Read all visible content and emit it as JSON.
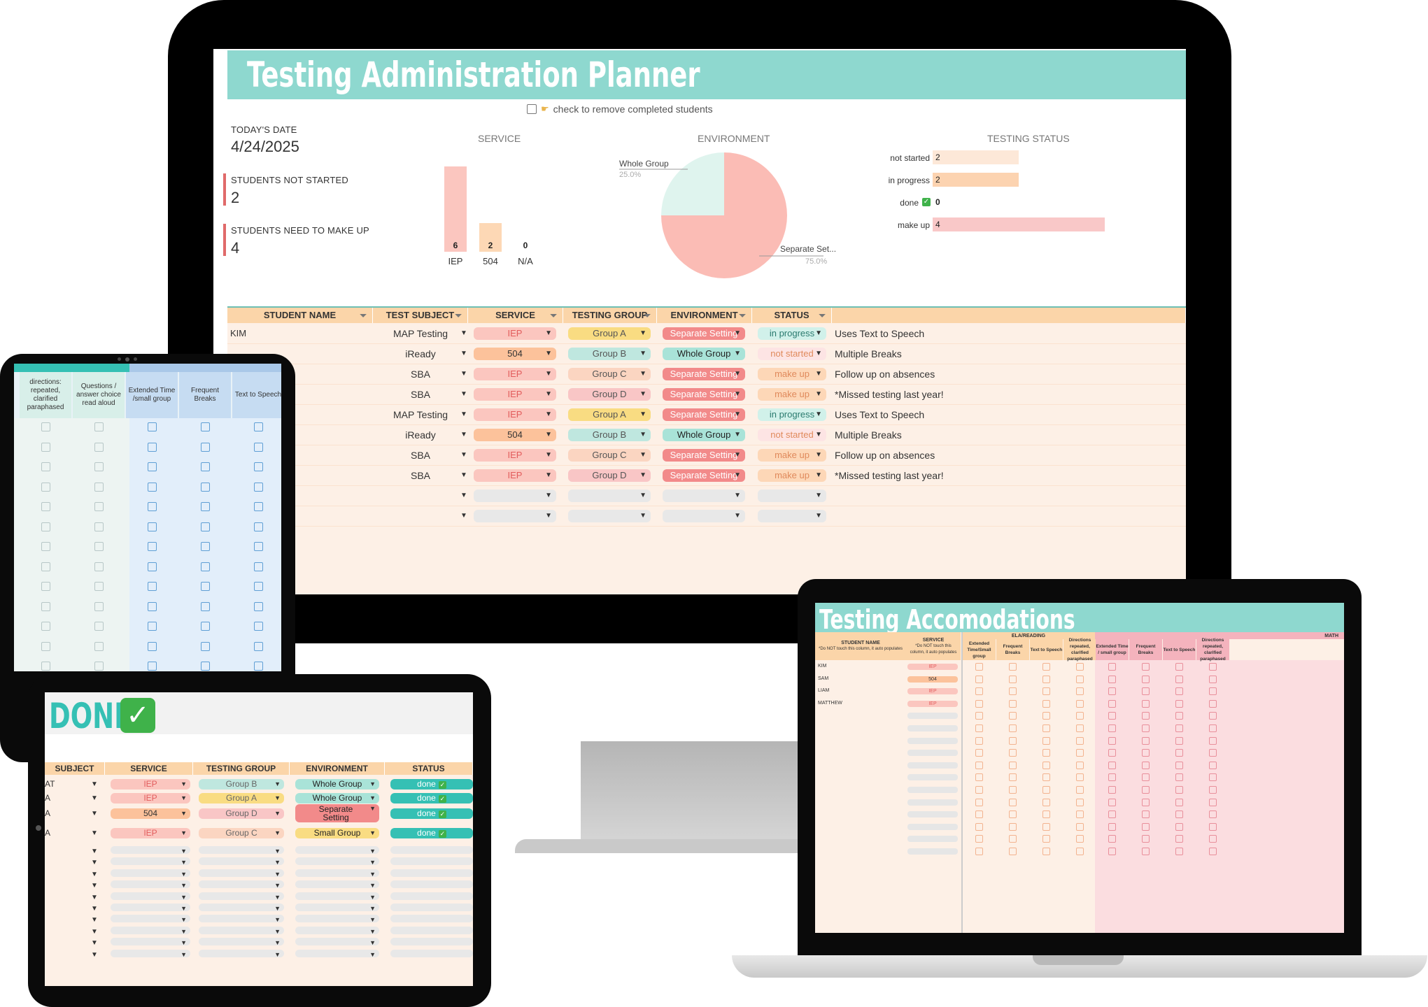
{
  "planner": {
    "title": "Testing Administration Planner",
    "remove_label": "check to remove completed students",
    "todays_date_label": "TODAY'S DATE",
    "todays_date": "4/24/2025",
    "not_started_label": "STUDENTS NOT STARTED",
    "not_started_value": "2",
    "make_up_label": "STUDENTS NEED TO MAKE UP",
    "make_up_value": "4",
    "service_chart_title": "SERVICE",
    "environment_chart_title": "ENVIRONMENT",
    "testing_status_title": "TESTING STATUS",
    "columns": [
      "STUDENT NAME",
      "TEST SUBJECT",
      "SERVICE",
      "TESTING GROUP",
      "ENVIRONMENT",
      "STATUS"
    ],
    "first_student": "KIM",
    "rows": [
      {
        "subject": "MAP Testing",
        "service": "IEP",
        "group": "Group A",
        "environment": "Separate Setting",
        "status": "in progress",
        "note": "Uses Text to Speech"
      },
      {
        "subject": "iReady",
        "service": "504",
        "group": "Group B",
        "environment": "Whole Group",
        "status": "not started",
        "note": "Multiple Breaks"
      },
      {
        "subject": "SBA",
        "service": "IEP",
        "group": "Group C",
        "environment": "Separate Setting",
        "status": "make up",
        "note": "Follow up on absences"
      },
      {
        "subject": "SBA",
        "service": "IEP",
        "group": "Group D",
        "environment": "Separate Setting",
        "status": "make up",
        "note": "*Missed testing last year!"
      },
      {
        "subject": "MAP Testing",
        "service": "IEP",
        "group": "Group A",
        "environment": "Separate Setting",
        "status": "in progress",
        "note": "Uses Text to Speech"
      },
      {
        "subject": "iReady",
        "service": "504",
        "group": "Group B",
        "environment": "Whole Group",
        "status": "not started",
        "note": "Multiple Breaks"
      },
      {
        "subject": "SBA",
        "service": "IEP",
        "group": "Group C",
        "environment": "Separate Setting",
        "status": "make up",
        "note": "Follow up on absences"
      },
      {
        "subject": "SBA",
        "service": "IEP",
        "group": "Group D",
        "environment": "Separate Setting",
        "status": "make up",
        "note": "*Missed testing last year!"
      }
    ]
  },
  "chart_data": [
    {
      "type": "bar",
      "title": "SERVICE",
      "categories": [
        "IEP",
        "504",
        "N/A"
      ],
      "values": [
        6,
        2,
        0
      ],
      "ylim": [
        0,
        6
      ]
    },
    {
      "type": "pie",
      "title": "ENVIRONMENT",
      "labels": [
        "Whole Group",
        "Separate Set..."
      ],
      "values": [
        25.0,
        75.0
      ],
      "percent_labels": [
        "25.0%",
        "75.0%"
      ]
    },
    {
      "type": "bar",
      "orientation": "horizontal",
      "title": "TESTING STATUS",
      "categories": [
        "not started",
        "in progress",
        "done",
        "make up"
      ],
      "values": [
        2,
        2,
        0,
        4
      ],
      "xlim": [
        0,
        4
      ]
    }
  ],
  "colors": {
    "teal": "#8ed8cf",
    "iep": "#fbc6bf",
    "s504": "#fcc29b",
    "groupA": "#f9dc82",
    "groupB": "#bfe7df",
    "groupC": "#fbd5c1",
    "groupD": "#f9c6c6",
    "separate": "#f28a8a",
    "whole": "#a9e3d8",
    "in_progress": "#d1f1ea",
    "not_started": "#fde4e4",
    "make_up": "#fdd7b7",
    "done": "#35c0b4"
  },
  "tablet_portrait": {
    "headers": [
      "directions: repeated, clarified paraphased",
      "Questions / answer choice read aloud",
      "Extended Time /small group",
      "Frequent Breaks",
      "Text to Speech"
    ]
  },
  "done_tablet": {
    "title": "DONE",
    "check": "✓",
    "headers": [
      "SUBJECT",
      "SERVICE",
      "TESTING GROUP",
      "ENVIRONMENT",
      "STATUS"
    ],
    "rows": [
      {
        "subject": "AT",
        "service": "IEP",
        "group": "Group B",
        "environment": "Whole Group",
        "status": "done"
      },
      {
        "subject": "A",
        "service": "IEP",
        "group": "Group A",
        "environment": "Whole Group",
        "status": "done"
      },
      {
        "subject": "A",
        "service": "504",
        "group": "Group D",
        "environment": "Separate Setting",
        "status": "done"
      },
      {
        "subject": "A",
        "service": "IEP",
        "group": "Group C",
        "environment": "Small Group",
        "status": "done"
      }
    ]
  },
  "accommodations": {
    "title": "Testing Accomodations",
    "student_header": "STUDENT NAME",
    "student_note": "*Do NOT touch this column, it auto populates",
    "service_header": "SERVICE",
    "service_note": "*Do NOT touch this column, it auto populates",
    "ela_header": "ELA/READING",
    "math_header": "MATH",
    "columns": [
      "Extended Time/Small group",
      "Frequent Breaks",
      "Text to Speech",
      "Directions repeated, clarified paraphased",
      "Extended Time / small group",
      "Frequent Breaks",
      "Text to Speech",
      "Directions repeated, clarified paraphased"
    ],
    "students": [
      {
        "name": "KIM",
        "service": "IEP"
      },
      {
        "name": "SAM",
        "service": "504"
      },
      {
        "name": "LIAM",
        "service": "IEP"
      },
      {
        "name": "MATTHEW",
        "service": "IEP"
      }
    ]
  }
}
